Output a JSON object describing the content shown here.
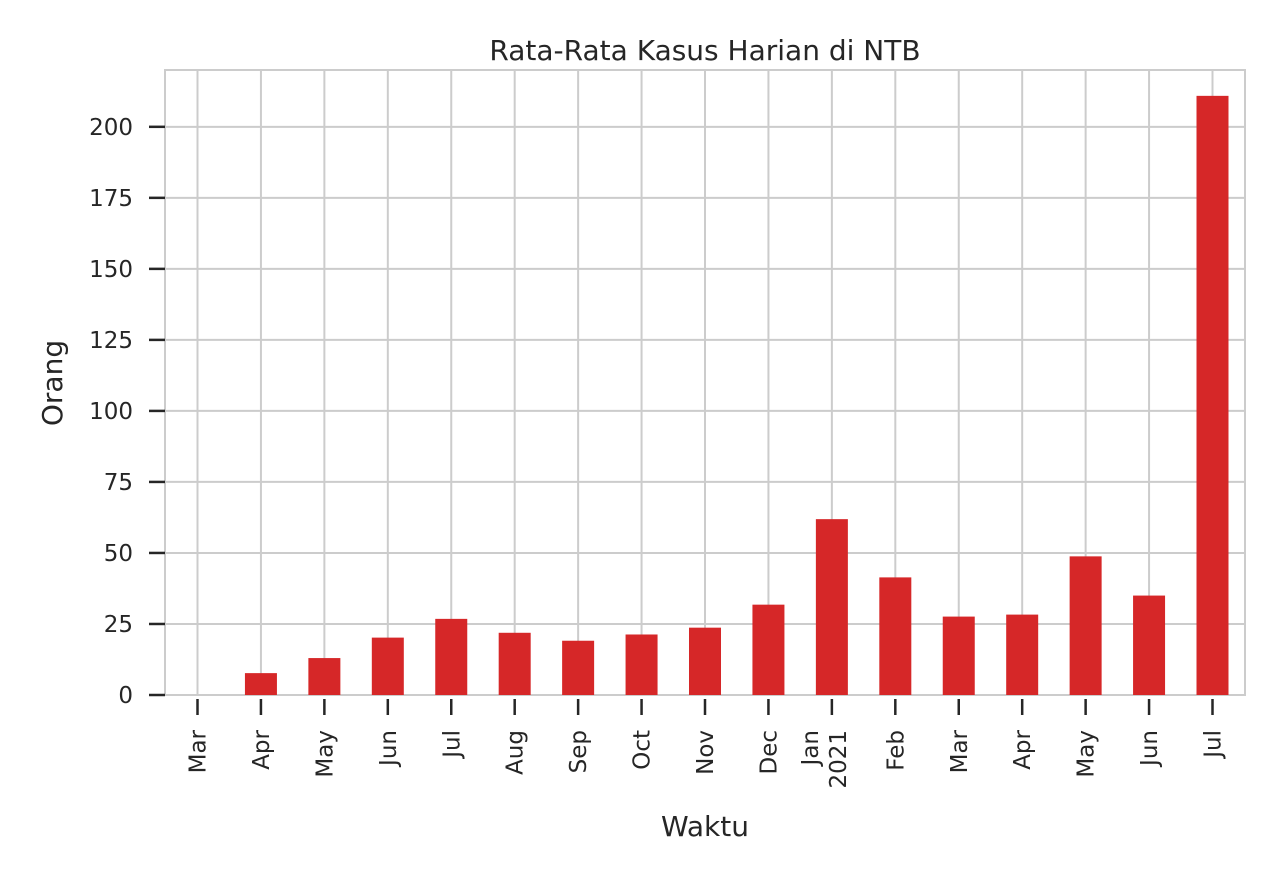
{
  "chart_data": {
    "type": "bar",
    "title": "Rata-Rata Kasus Harian di NTB",
    "xlabel": "Waktu",
    "ylabel": "Orang",
    "categories": [
      {
        "label": "Mar",
        "sublabel": ""
      },
      {
        "label": "Apr",
        "sublabel": ""
      },
      {
        "label": "May",
        "sublabel": ""
      },
      {
        "label": "Jun",
        "sublabel": ""
      },
      {
        "label": "Jul",
        "sublabel": ""
      },
      {
        "label": "Aug",
        "sublabel": ""
      },
      {
        "label": "Sep",
        "sublabel": ""
      },
      {
        "label": "Oct",
        "sublabel": ""
      },
      {
        "label": "Nov",
        "sublabel": ""
      },
      {
        "label": "Dec",
        "sublabel": ""
      },
      {
        "label": "Jan",
        "sublabel": "2021"
      },
      {
        "label": "Feb",
        "sublabel": ""
      },
      {
        "label": "Mar",
        "sublabel": ""
      },
      {
        "label": "Apr",
        "sublabel": ""
      },
      {
        "label": "May",
        "sublabel": ""
      },
      {
        "label": "Jun",
        "sublabel": ""
      },
      {
        "label": "Jul",
        "sublabel": ""
      }
    ],
    "values": [
      0,
      7.7,
      13.0,
      20.2,
      26.8,
      21.9,
      19.1,
      21.3,
      23.7,
      31.8,
      61.9,
      41.4,
      27.6,
      28.3,
      48.8,
      35.0,
      210.9
    ],
    "ylim": [
      0,
      220
    ],
    "yticks": [
      0,
      25,
      50,
      75,
      100,
      125,
      150,
      175,
      200
    ],
    "bar_color": "#d62728",
    "grid": true
  }
}
